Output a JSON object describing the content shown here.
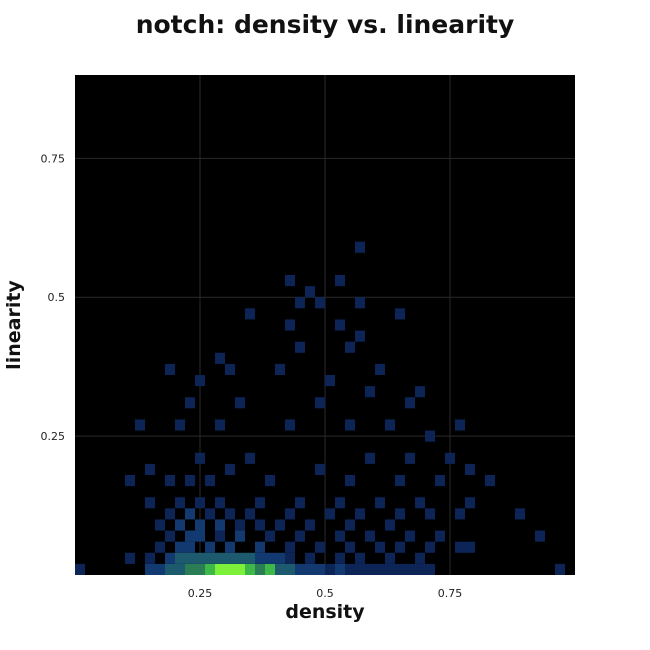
{
  "chart_data": {
    "type": "heatmap",
    "title": "notch: density vs. linearity",
    "xlabel": "density",
    "ylabel": "linearity",
    "xlim": [
      0,
      1
    ],
    "ylim": [
      0,
      0.9
    ],
    "xticks": [
      "0.25",
      "0.5",
      "0.75"
    ],
    "yticks": [
      "0.25",
      "0.5",
      "0.75"
    ],
    "grid": true,
    "background_color": "#000000",
    "grid_color": "#2a2a2a",
    "colorscale": [
      "#0c2456",
      "#123a70",
      "#1d5a6e",
      "#2a7d55",
      "#3fb84a",
      "#7df03a",
      "#c8ff2a"
    ],
    "bin_size": [
      0.02,
      0.02
    ],
    "cells": [
      [
        0.01,
        0.01,
        1
      ],
      [
        0.11,
        0.03,
        1
      ],
      [
        0.15,
        0.01,
        2
      ],
      [
        0.17,
        0.01,
        2
      ],
      [
        0.19,
        0.01,
        3
      ],
      [
        0.21,
        0.01,
        3
      ],
      [
        0.23,
        0.01,
        4
      ],
      [
        0.25,
        0.01,
        4
      ],
      [
        0.27,
        0.01,
        5
      ],
      [
        0.29,
        0.01,
        6
      ],
      [
        0.31,
        0.01,
        6
      ],
      [
        0.33,
        0.01,
        6
      ],
      [
        0.35,
        0.01,
        5
      ],
      [
        0.37,
        0.01,
        4
      ],
      [
        0.39,
        0.01,
        5
      ],
      [
        0.41,
        0.01,
        3
      ],
      [
        0.43,
        0.01,
        3
      ],
      [
        0.45,
        0.01,
        2
      ],
      [
        0.47,
        0.01,
        2
      ],
      [
        0.49,
        0.01,
        2
      ],
      [
        0.51,
        0.01,
        1
      ],
      [
        0.53,
        0.01,
        2
      ],
      [
        0.55,
        0.01,
        1
      ],
      [
        0.57,
        0.01,
        1
      ],
      [
        0.59,
        0.01,
        1
      ],
      [
        0.61,
        0.01,
        1
      ],
      [
        0.63,
        0.01,
        1
      ],
      [
        0.65,
        0.01,
        1
      ],
      [
        0.67,
        0.01,
        1
      ],
      [
        0.69,
        0.01,
        1
      ],
      [
        0.71,
        0.01,
        1
      ],
      [
        0.97,
        0.01,
        1
      ],
      [
        0.15,
        0.03,
        1
      ],
      [
        0.19,
        0.03,
        2
      ],
      [
        0.21,
        0.03,
        3
      ],
      [
        0.23,
        0.03,
        3
      ],
      [
        0.25,
        0.03,
        3
      ],
      [
        0.27,
        0.03,
        3
      ],
      [
        0.29,
        0.03,
        3
      ],
      [
        0.31,
        0.03,
        3
      ],
      [
        0.33,
        0.03,
        3
      ],
      [
        0.35,
        0.03,
        3
      ],
      [
        0.37,
        0.03,
        2
      ],
      [
        0.39,
        0.03,
        2
      ],
      [
        0.41,
        0.03,
        2
      ],
      [
        0.43,
        0.03,
        1
      ],
      [
        0.47,
        0.03,
        1
      ],
      [
        0.53,
        0.03,
        1
      ],
      [
        0.57,
        0.03,
        1
      ],
      [
        0.63,
        0.03,
        1
      ],
      [
        0.69,
        0.03,
        1
      ],
      [
        0.17,
        0.05,
        1
      ],
      [
        0.21,
        0.05,
        2
      ],
      [
        0.23,
        0.05,
        2
      ],
      [
        0.27,
        0.05,
        2
      ],
      [
        0.31,
        0.05,
        2
      ],
      [
        0.37,
        0.05,
        2
      ],
      [
        0.43,
        0.05,
        1
      ],
      [
        0.49,
        0.05,
        1
      ],
      [
        0.55,
        0.05,
        1
      ],
      [
        0.61,
        0.05,
        1
      ],
      [
        0.65,
        0.05,
        1
      ],
      [
        0.71,
        0.05,
        1
      ],
      [
        0.77,
        0.05,
        1
      ],
      [
        0.79,
        0.05,
        1
      ],
      [
        0.93,
        0.07,
        1
      ],
      [
        0.19,
        0.07,
        1
      ],
      [
        0.23,
        0.07,
        2
      ],
      [
        0.25,
        0.07,
        2
      ],
      [
        0.29,
        0.07,
        1
      ],
      [
        0.33,
        0.07,
        2
      ],
      [
        0.39,
        0.07,
        1
      ],
      [
        0.45,
        0.07,
        1
      ],
      [
        0.53,
        0.07,
        1
      ],
      [
        0.59,
        0.07,
        1
      ],
      [
        0.67,
        0.07,
        1
      ],
      [
        0.73,
        0.07,
        1
      ],
      [
        0.17,
        0.09,
        1
      ],
      [
        0.21,
        0.09,
        2
      ],
      [
        0.25,
        0.09,
        2
      ],
      [
        0.29,
        0.09,
        2
      ],
      [
        0.33,
        0.09,
        1
      ],
      [
        0.37,
        0.09,
        1
      ],
      [
        0.41,
        0.09,
        1
      ],
      [
        0.47,
        0.09,
        1
      ],
      [
        0.55,
        0.09,
        1
      ],
      [
        0.63,
        0.09,
        1
      ],
      [
        0.77,
        0.11,
        1
      ],
      [
        0.89,
        0.11,
        1
      ],
      [
        0.19,
        0.11,
        1
      ],
      [
        0.23,
        0.11,
        2
      ],
      [
        0.27,
        0.11,
        1
      ],
      [
        0.31,
        0.11,
        1
      ],
      [
        0.35,
        0.11,
        1
      ],
      [
        0.43,
        0.11,
        1
      ],
      [
        0.51,
        0.11,
        1
      ],
      [
        0.57,
        0.11,
        1
      ],
      [
        0.65,
        0.11,
        1
      ],
      [
        0.71,
        0.11,
        1
      ],
      [
        0.15,
        0.13,
        1
      ],
      [
        0.21,
        0.13,
        1
      ],
      [
        0.25,
        0.13,
        1
      ],
      [
        0.29,
        0.13,
        1
      ],
      [
        0.37,
        0.13,
        1
      ],
      [
        0.45,
        0.13,
        1
      ],
      [
        0.53,
        0.13,
        1
      ],
      [
        0.61,
        0.13,
        1
      ],
      [
        0.69,
        0.13,
        1
      ],
      [
        0.79,
        0.13,
        1
      ],
      [
        0.11,
        0.17,
        1
      ],
      [
        0.19,
        0.17,
        1
      ],
      [
        0.23,
        0.17,
        1
      ],
      [
        0.27,
        0.17,
        1
      ],
      [
        0.39,
        0.17,
        1
      ],
      [
        0.55,
        0.17,
        1
      ],
      [
        0.65,
        0.17,
        1
      ],
      [
        0.73,
        0.17,
        1
      ],
      [
        0.83,
        0.17,
        1
      ],
      [
        0.15,
        0.19,
        1
      ],
      [
        0.25,
        0.21,
        1
      ],
      [
        0.31,
        0.19,
        1
      ],
      [
        0.35,
        0.21,
        1
      ],
      [
        0.49,
        0.19,
        1
      ],
      [
        0.59,
        0.21,
        1
      ],
      [
        0.67,
        0.21,
        1
      ],
      [
        0.75,
        0.21,
        1
      ],
      [
        0.79,
        0.19,
        1
      ],
      [
        0.13,
        0.27,
        1
      ],
      [
        0.21,
        0.27,
        1
      ],
      [
        0.29,
        0.27,
        1
      ],
      [
        0.43,
        0.27,
        1
      ],
      [
        0.55,
        0.27,
        1
      ],
      [
        0.63,
        0.27,
        1
      ],
      [
        0.71,
        0.25,
        1
      ],
      [
        0.77,
        0.27,
        1
      ],
      [
        0.23,
        0.31,
        1
      ],
      [
        0.33,
        0.31,
        1
      ],
      [
        0.49,
        0.31,
        1
      ],
      [
        0.59,
        0.33,
        1
      ],
      [
        0.67,
        0.31,
        1
      ],
      [
        0.69,
        0.33,
        1
      ],
      [
        0.19,
        0.37,
        1
      ],
      [
        0.25,
        0.35,
        1
      ],
      [
        0.31,
        0.37,
        1
      ],
      [
        0.41,
        0.37,
        1
      ],
      [
        0.51,
        0.35,
        1
      ],
      [
        0.61,
        0.37,
        1
      ],
      [
        0.29,
        0.39,
        1
      ],
      [
        0.45,
        0.41,
        1
      ],
      [
        0.55,
        0.41,
        1
      ],
      [
        0.57,
        0.43,
        1
      ],
      [
        0.35,
        0.47,
        1
      ],
      [
        0.43,
        0.45,
        1
      ],
      [
        0.53,
        0.45,
        1
      ],
      [
        0.65,
        0.47,
        1
      ],
      [
        0.45,
        0.49,
        1
      ],
      [
        0.47,
        0.51,
        1
      ],
      [
        0.49,
        0.49,
        1
      ],
      [
        0.57,
        0.49,
        1
      ],
      [
        0.43,
        0.53,
        1
      ],
      [
        0.53,
        0.53,
        1
      ],
      [
        0.57,
        0.59,
        1
      ]
    ]
  }
}
